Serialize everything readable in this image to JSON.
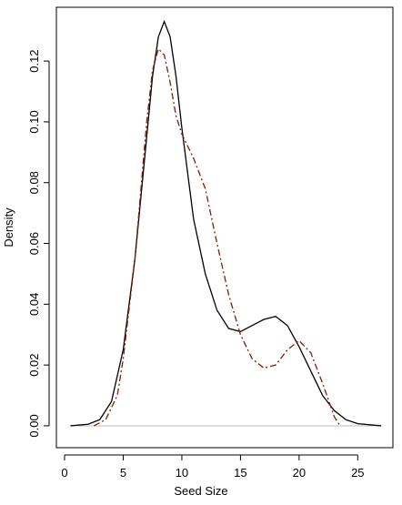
{
  "chart_data": {
    "type": "line",
    "x_label": "Seed Size",
    "y_label": "Density",
    "xlim": [
      -0.7,
      28.0
    ],
    "ylim": [
      -0.0072,
      0.1377
    ],
    "xticks": [
      0,
      5,
      10,
      15,
      20,
      25
    ],
    "yticks": [
      {
        "value": 0,
        "label": "0.00"
      },
      {
        "value": 0.02,
        "label": "0.02"
      },
      {
        "value": 0.04,
        "label": "0.04"
      },
      {
        "value": 0.06,
        "label": "0.06"
      },
      {
        "value": 0.08,
        "label": "0.08"
      },
      {
        "value": 0.1,
        "label": "0.10"
      },
      {
        "value": 0.12,
        "label": "0.12"
      }
    ],
    "zero_line": true,
    "series": [
      {
        "color": "#000000",
        "dash": "solid",
        "x": [
          0.5,
          2,
          3,
          4,
          5,
          6,
          7,
          7.5,
          8,
          8.5,
          9,
          9.5,
          10,
          11,
          12,
          13,
          14,
          15,
          16,
          17,
          18,
          19,
          20,
          21,
          22,
          23,
          24,
          25,
          27
        ],
        "values": [
          0,
          0.0005,
          0.002,
          0.008,
          0.025,
          0.055,
          0.095,
          0.115,
          0.128,
          0.133,
          0.128,
          0.115,
          0.098,
          0.068,
          0.05,
          0.038,
          0.032,
          0.031,
          0.033,
          0.035,
          0.036,
          0.033,
          0.026,
          0.018,
          0.01,
          0.005,
          0.002,
          0.0007,
          0
        ]
      },
      {
        "color": "#8b1a00",
        "dash": "dashdot",
        "x": [
          2.5,
          3.5,
          4.5,
          5,
          6,
          7,
          7.5,
          8,
          8.5,
          9,
          9.5,
          10,
          11,
          12,
          13,
          14,
          15,
          16,
          17,
          18,
          19,
          20,
          21,
          22,
          23,
          23.5
        ],
        "values": [
          0,
          0.002,
          0.01,
          0.022,
          0.055,
          0.1,
          0.117,
          0.124,
          0.122,
          0.113,
          0.102,
          0.096,
          0.088,
          0.078,
          0.06,
          0.043,
          0.03,
          0.022,
          0.019,
          0.02,
          0.025,
          0.028,
          0.024,
          0.014,
          0.003,
          0
        ]
      }
    ]
  }
}
